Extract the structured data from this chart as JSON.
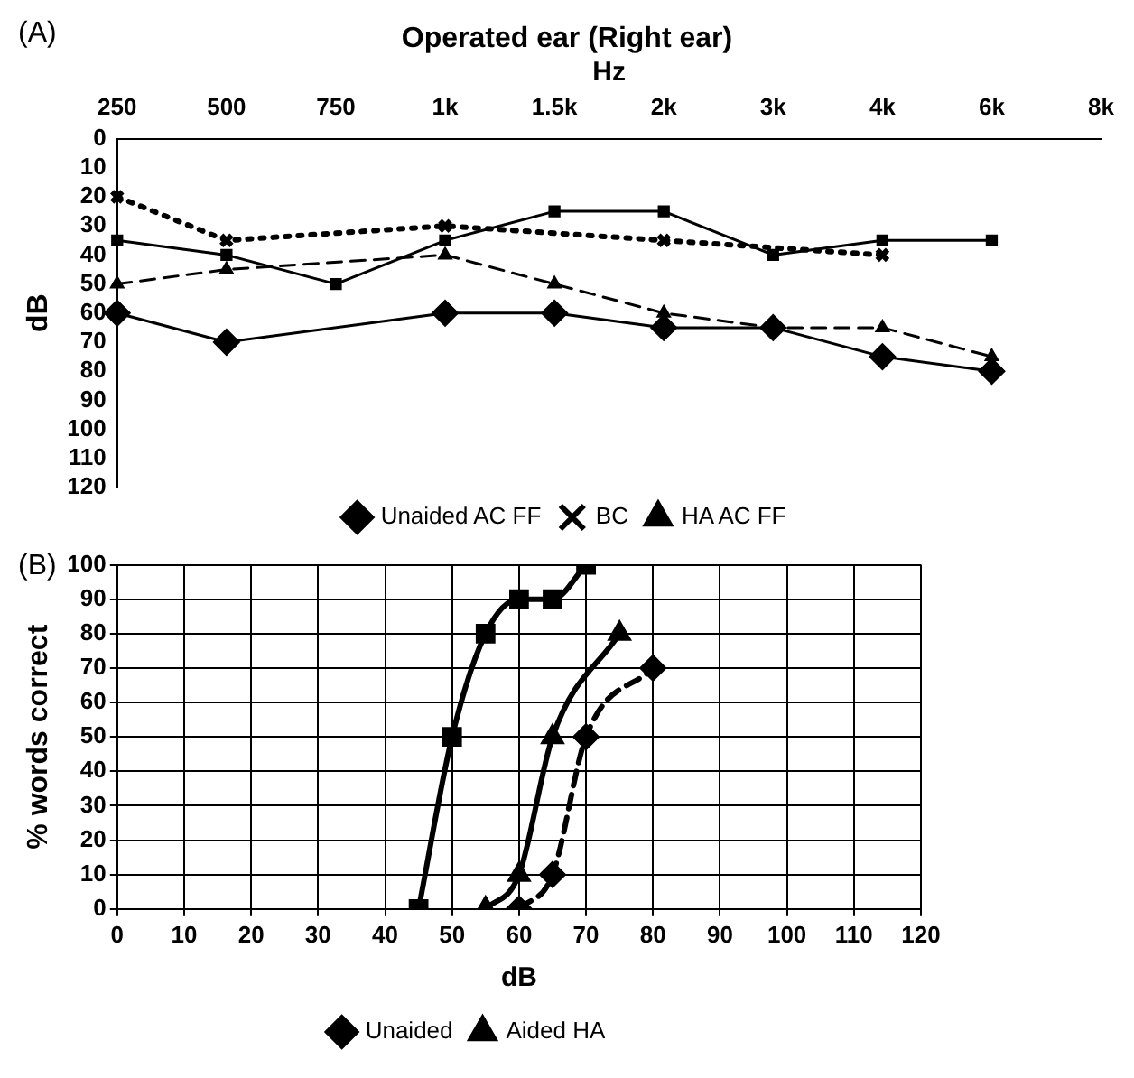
{
  "chart_data": [
    {
      "type": "line",
      "title": "Operated ear (Right ear)",
      "xlabel": "Hz",
      "ylabel": "dB",
      "annotations": [
        "(A)"
      ],
      "categories": [
        "250",
        "500",
        "750",
        "1k",
        "1.5k",
        "2k",
        "3k",
        "4k",
        "6k",
        "8k"
      ],
      "ylim": [
        120,
        0
      ],
      "yticks": [
        0,
        10,
        20,
        30,
        40,
        50,
        60,
        70,
        80,
        90,
        100,
        110,
        120
      ],
      "grid": false,
      "legend": "bottom",
      "series": [
        {
          "name": "Unaided AC FF",
          "color": "#000000",
          "marker": "diamond",
          "line_style": "solid",
          "values": [
            60,
            70,
            null,
            60,
            60,
            65,
            65,
            75,
            80,
            null
          ]
        },
        {
          "name": "BC",
          "color": "#000000",
          "marker": "cross",
          "line_style": "dotted",
          "values": [
            20,
            35,
            null,
            30,
            null,
            35,
            null,
            40,
            null,
            null
          ]
        },
        {
          "name": "HA AC FF",
          "color": "#000000",
          "marker": "triangle",
          "line_style": "dashed",
          "values": [
            50,
            45,
            null,
            40,
            50,
            60,
            65,
            65,
            75,
            null
          ]
        },
        {
          "color": "#000000",
          "marker": "square",
          "line_style": "solid",
          "values": [
            35,
            40,
            50,
            35,
            25,
            25,
            40,
            35,
            35,
            null
          ]
        }
      ]
    },
    {
      "type": "line",
      "xlabel": "dB",
      "ylabel": "% words correct",
      "annotations": [
        "(B)"
      ],
      "xlim": [
        0,
        120
      ],
      "xticks": [
        0,
        10,
        20,
        30,
        40,
        50,
        60,
        70,
        80,
        90,
        100,
        110,
        120
      ],
      "ylim": [
        0,
        100
      ],
      "yticks": [
        0,
        10,
        20,
        30,
        40,
        50,
        60,
        70,
        80,
        90,
        100
      ],
      "grid": true,
      "legend": "bottom",
      "series": [
        {
          "name": "Unaided",
          "color": "#000000",
          "marker": "diamond",
          "line_style": "dashed",
          "x": [
            60,
            65,
            70,
            80
          ],
          "values": [
            0,
            10,
            50,
            70
          ]
        },
        {
          "name": "Aided HA",
          "color": "#000000",
          "marker": "triangle",
          "line_style": "solid",
          "x": [
            55,
            60,
            65,
            75
          ],
          "values": [
            0,
            10,
            50,
            80
          ]
        },
        {
          "color": "#000000",
          "marker": "square",
          "line_style": "solid",
          "x": [
            45,
            50,
            55,
            60,
            65,
            70
          ],
          "values": [
            0,
            50,
            80,
            90,
            90,
            100
          ]
        }
      ]
    }
  ]
}
